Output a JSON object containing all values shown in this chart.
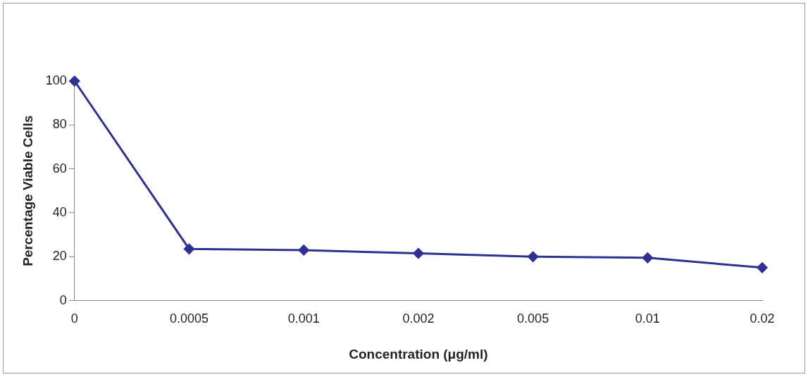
{
  "chart_data": {
    "type": "line",
    "xlabel": "Concentration (μg/ml)",
    "ylabel": "Percentage Viable Cells",
    "categories": [
      "0",
      "0.0005",
      "0.001",
      "0.002",
      "0.005",
      "0.01",
      "0.02"
    ],
    "series": [
      {
        "color": "#2e3192",
        "values": [
          100,
          23.5,
          23,
          21.5,
          20,
          19.5,
          15
        ]
      }
    ],
    "ylim": [
      0,
      100
    ],
    "yticks": [
      0,
      20,
      40,
      60,
      80,
      100
    ],
    "grid": false,
    "legend": false,
    "marker": "diamond",
    "line_style": "solid"
  }
}
